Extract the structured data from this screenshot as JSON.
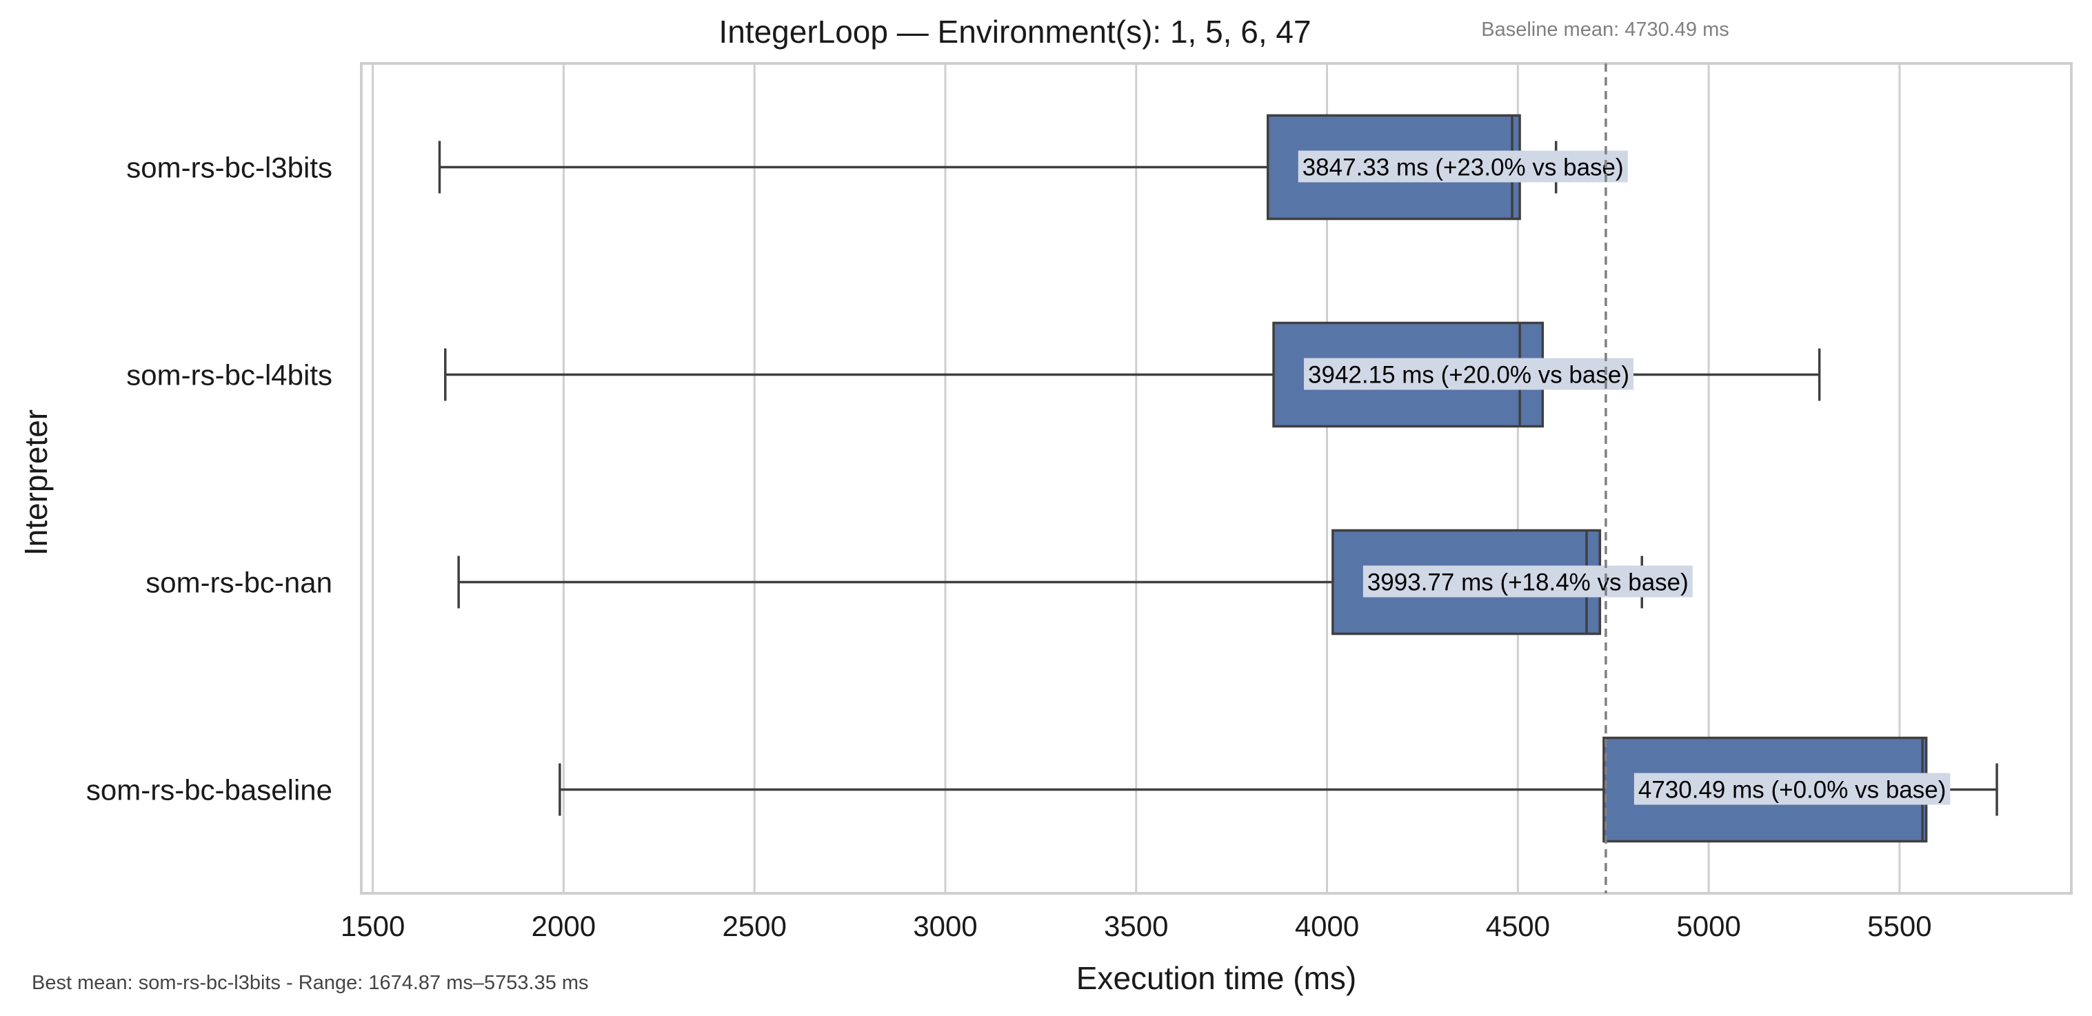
{
  "chart_data": {
    "type": "box",
    "orientation": "horizontal",
    "title": "IntegerLoop — Environment(s): 1, 5, 6, 47",
    "xlabel": "Execution time (ms)",
    "ylabel": "Interpreter",
    "xlim": [
      1470,
      5950
    ],
    "xticks": [
      1500,
      2000,
      2500,
      3000,
      3500,
      4000,
      4500,
      5000,
      5500
    ],
    "grid": true,
    "baseline": {
      "value": 4730.49,
      "label": "Baseline mean: 4730.49 ms"
    },
    "footnote": "Best mean: som-rs-bc-l3bits - Range: 1674.87 ms–5753.35 ms",
    "colors": {
      "box": "#5875a8",
      "edge": "#3f3f3f",
      "grid": "#cfcfcf",
      "label_bg": "#d0d8e6",
      "baseline": "#808080"
    },
    "series": [
      {
        "category": "som-rs-bc-l3bits",
        "whisker_low": 1675,
        "q1": 3845,
        "median": 4485,
        "q3": 4505,
        "whisker_high": 4600,
        "annotation": "3847.33 ms  (+23.0% vs base)"
      },
      {
        "category": "som-rs-bc-l4bits",
        "whisker_low": 1690,
        "q1": 3860,
        "median": 4505,
        "q3": 4565,
        "whisker_high": 5290,
        "annotation": "3942.15 ms  (+20.0% vs base)"
      },
      {
        "category": "som-rs-bc-nan",
        "whisker_low": 1725,
        "q1": 4015,
        "median": 4680,
        "q3": 4715,
        "whisker_high": 4825,
        "annotation": "3993.77 ms  (+18.4% vs base)"
      },
      {
        "category": "som-rs-bc-baseline",
        "whisker_low": 1990,
        "q1": 4725,
        "median": 5560,
        "q3": 5570,
        "whisker_high": 5755,
        "annotation": "4730.49 ms  (+0.0% vs base)"
      }
    ]
  }
}
